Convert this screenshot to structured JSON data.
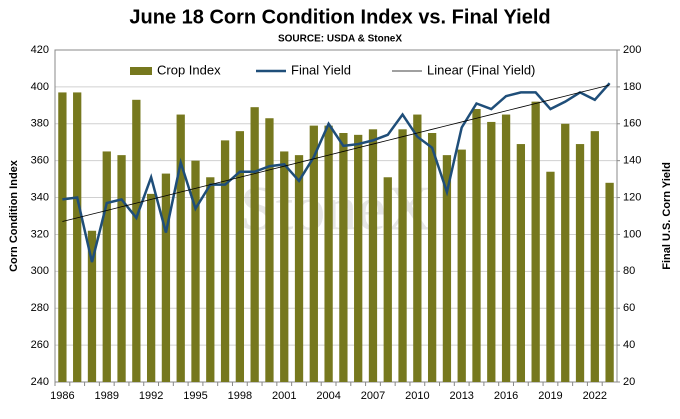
{
  "chart_data": {
    "type": "bar_line",
    "title": "June 18 Corn Condition Index vs. Final Yield",
    "subtitle": "SOURCE: USDA & StoneX",
    "watermark": "StoneX",
    "ylabel": "Corn Condition Index",
    "y2label": "Final U.S. Corn Yield",
    "categories": [
      "1986",
      null,
      null,
      "1989",
      null,
      null,
      "1992",
      null,
      null,
      "1995",
      null,
      null,
      "1998",
      null,
      null,
      "2001",
      null,
      null,
      "2004",
      null,
      null,
      "2007",
      null,
      null,
      "2010",
      null,
      null,
      "2013",
      null,
      null,
      "2016",
      null,
      null,
      "2019",
      null,
      null,
      "2022",
      null
    ],
    "series": [
      {
        "name": "Crop Index",
        "type": "bar",
        "color": "#76781e",
        "values": [
          397,
          397,
          322,
          365,
          363,
          393,
          342,
          353,
          385,
          360,
          351,
          371,
          376,
          389,
          383,
          365,
          363,
          379,
          379,
          375,
          374,
          377,
          351,
          377,
          385,
          375,
          363,
          366,
          388,
          381,
          385,
          369,
          392,
          354,
          380,
          369,
          376,
          348
        ]
      },
      {
        "name": "Final Yield",
        "type": "line",
        "axis": "y2",
        "color": "#1f4e79",
        "values": [
          119,
          120,
          85,
          117,
          119,
          109,
          131,
          101,
          139,
          114,
          127,
          127,
          134,
          134,
          137,
          138,
          129,
          142,
          160,
          148,
          149,
          151,
          154,
          165,
          153,
          147,
          123,
          158,
          171,
          168,
          175,
          177,
          177,
          168,
          172,
          177,
          173,
          182
        ]
      },
      {
        "name": "Linear (Final Yield)",
        "type": "line",
        "axis": "y2",
        "color": "#000000",
        "values": [
          107,
          109,
          111,
          113,
          115,
          117,
          119,
          121,
          123,
          125,
          127,
          129,
          131,
          133,
          135,
          137,
          139,
          141,
          143,
          145,
          147,
          149,
          151,
          153,
          155,
          157,
          159,
          161,
          163,
          165,
          167,
          169,
          171,
          173,
          175,
          177,
          179,
          181
        ]
      }
    ],
    "ylim": [
      240,
      420
    ],
    "yticks": [
      240,
      260,
      280,
      300,
      320,
      340,
      360,
      380,
      400,
      420
    ],
    "y2lim": [
      20,
      200
    ],
    "y2ticks": [
      20,
      40,
      60,
      80,
      100,
      120,
      140,
      160,
      180,
      200
    ],
    "grid": true
  }
}
